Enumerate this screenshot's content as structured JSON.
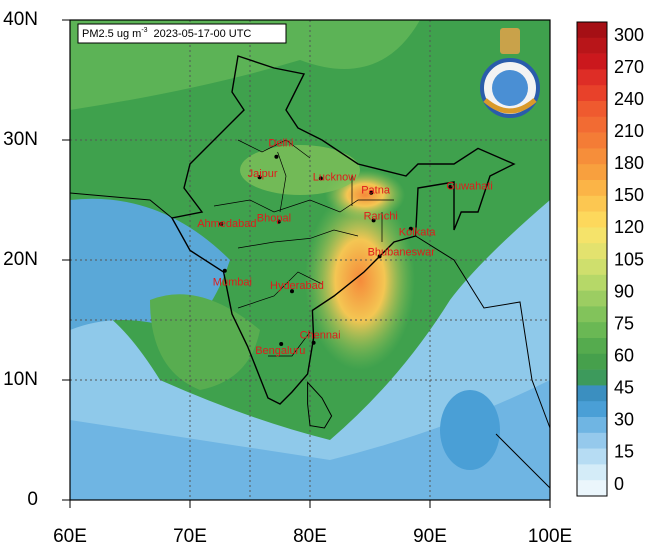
{
  "map": {
    "title": {
      "quantity": "PM2.5 ug m",
      "exponent": "-3",
      "time": "2023-05-17-00 UTC"
    },
    "lat_labels": [
      "40N",
      "30N",
      "20N",
      "10N",
      "0"
    ],
    "lon_labels": [
      "60E",
      "70E",
      "80E",
      "90E",
      "100E"
    ],
    "cities": [
      "Delhi",
      "Jaipur",
      "Lucknow",
      "Patna",
      "Guwahati",
      "Ahmedabad",
      "Bhopal",
      "Ranchi",
      "Kolkata",
      "Mumbai",
      "Bhubaneswar",
      "Hyderabad",
      "Chennai",
      "Bengaluru"
    ],
    "colorbar": {
      "labels": [
        "300",
        "270",
        "240",
        "210",
        "180",
        "150",
        "120",
        "105",
        "90",
        "75",
        "60",
        "45",
        "30",
        "15",
        "0"
      ],
      "colors": [
        "#a50f15",
        "#b81519",
        "#cb181d",
        "#de2d26",
        "#e8412a",
        "#ef5a2f",
        "#f26b33",
        "#f47c36",
        "#f68e3a",
        "#f8a03e",
        "#fbb447",
        "#fcc751",
        "#fdd85c",
        "#f5e36a",
        "#e3e26e",
        "#cfdf6d",
        "#b6d868",
        "#9ccd62",
        "#82c35b",
        "#6ab854",
        "#55ab4e",
        "#46a04c",
        "#3d9a5c",
        "#3b8fc0",
        "#4a9fd6",
        "#6fb5e3",
        "#95c9ec",
        "#b6dcf3",
        "#d4ecf8",
        "#ebf6fc"
      ]
    }
  }
}
